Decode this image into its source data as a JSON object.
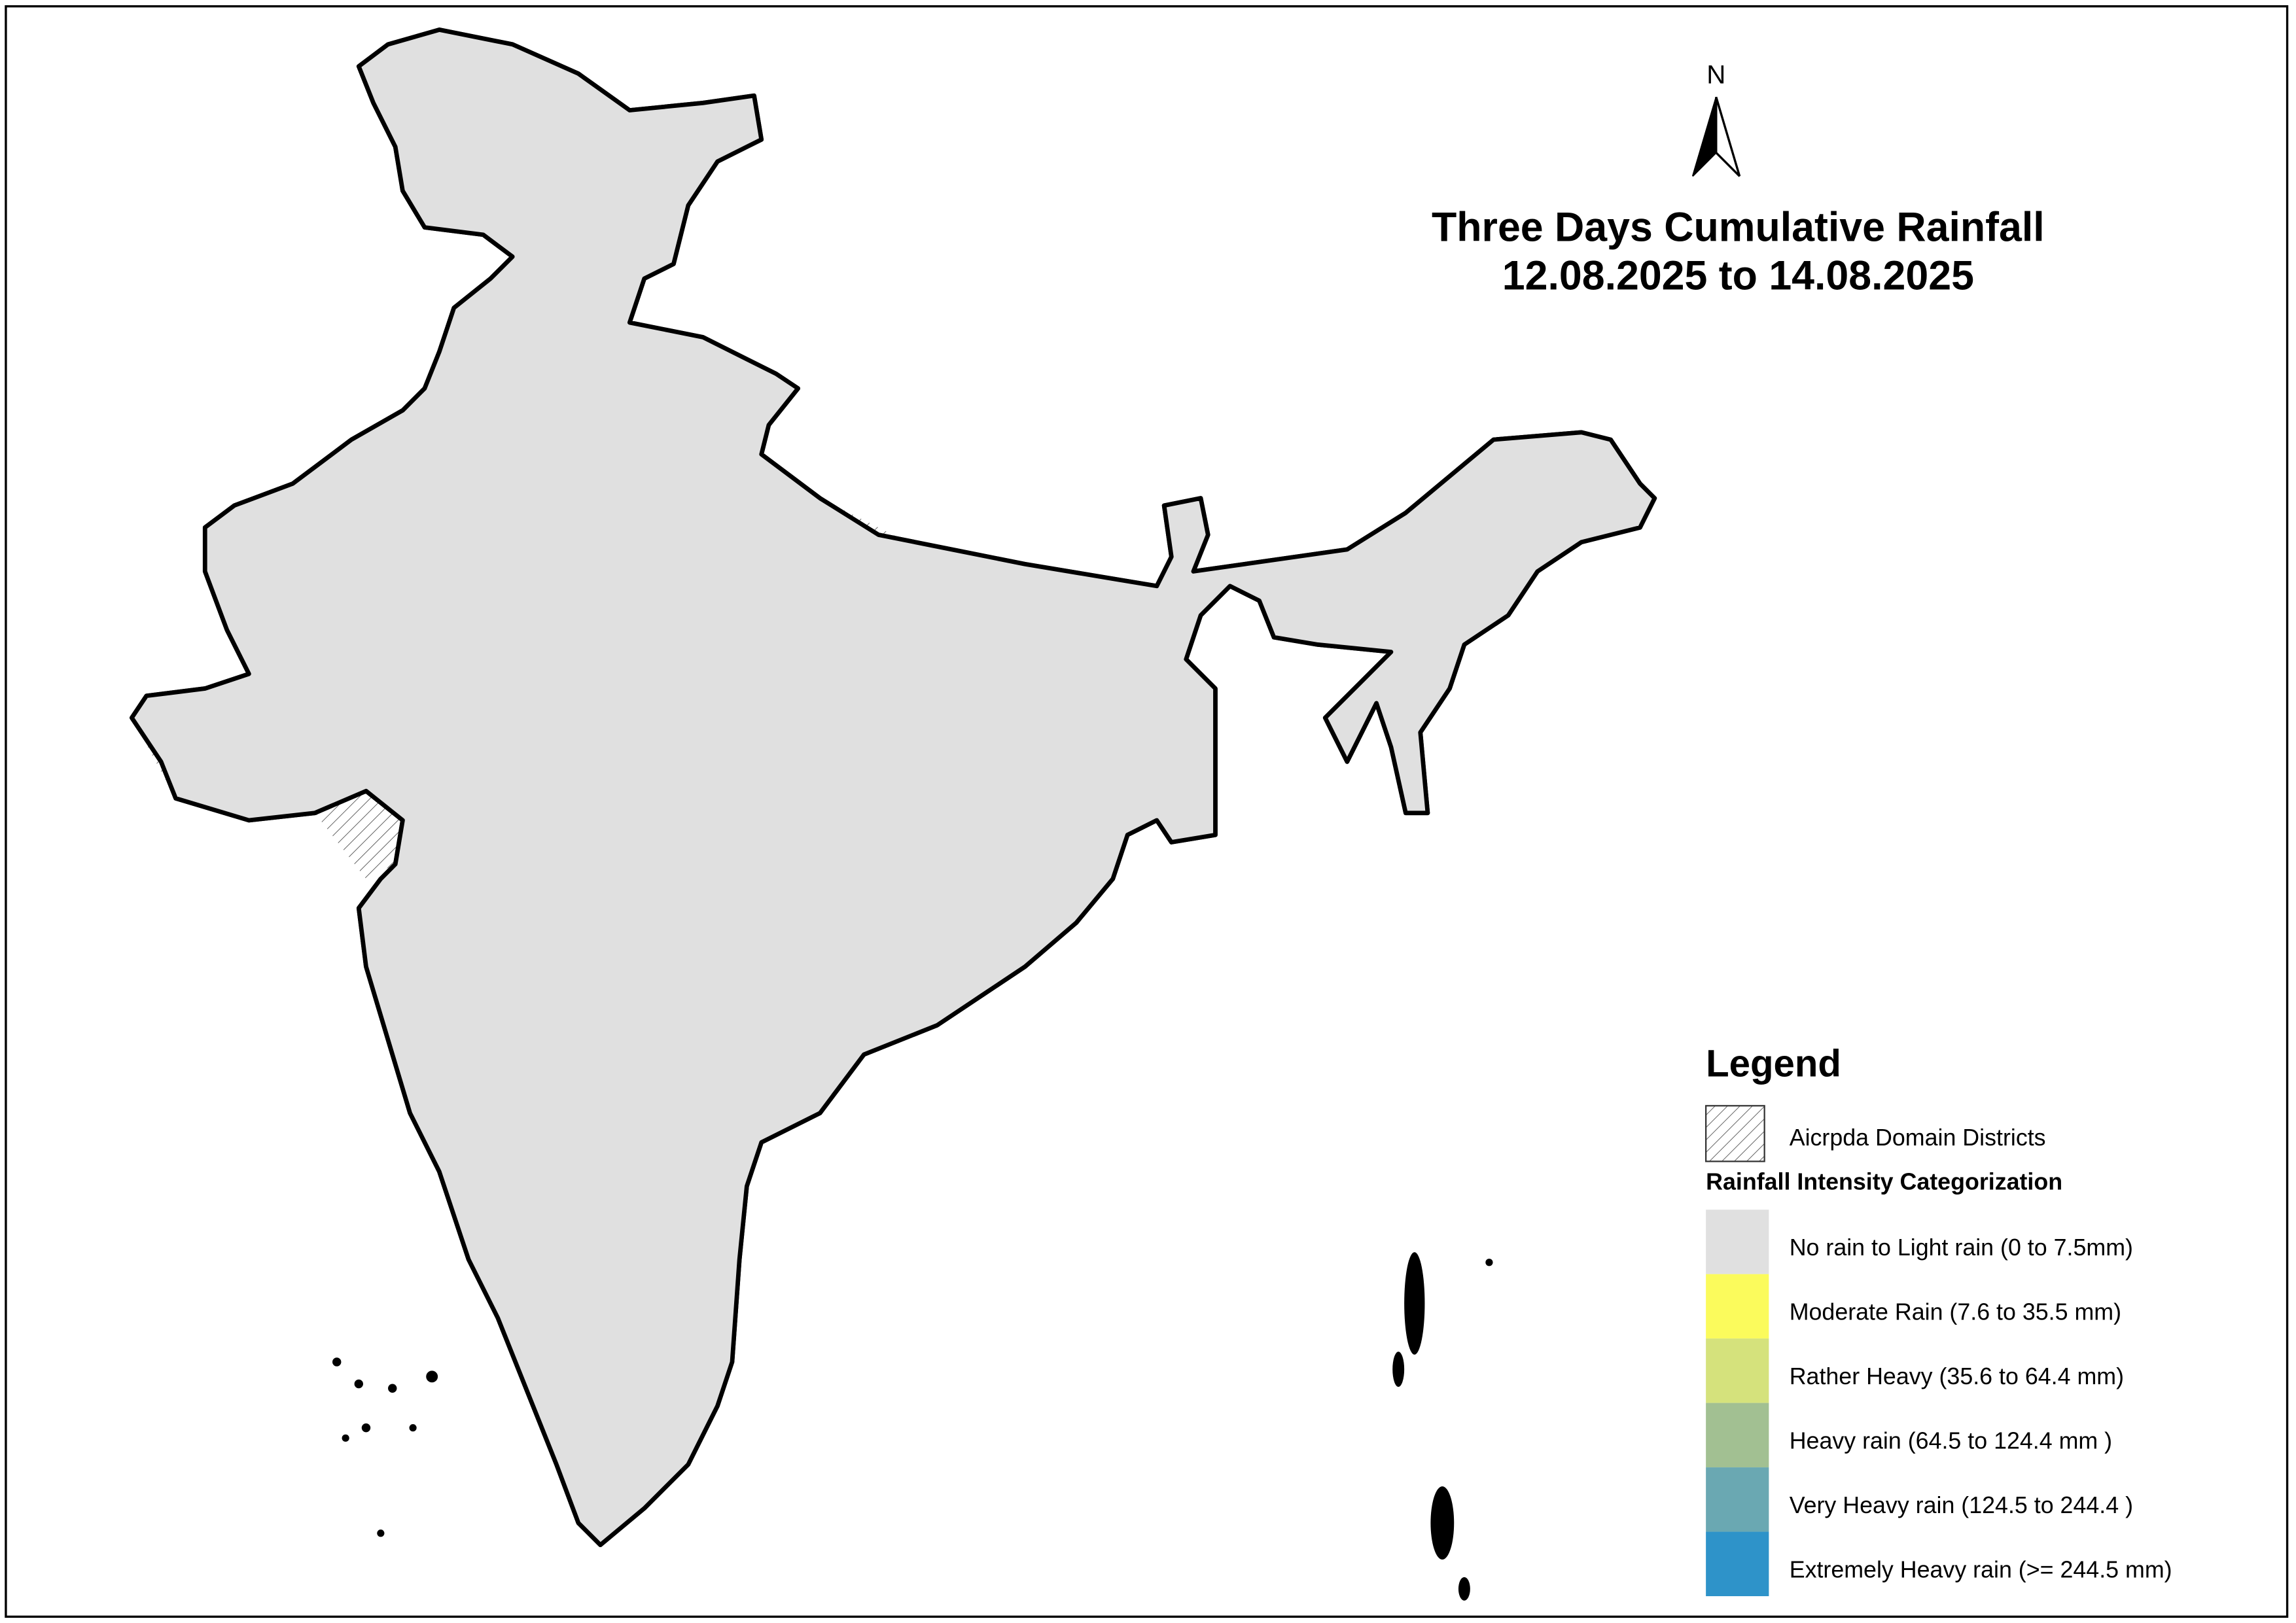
{
  "title": [
    "Three Days Cumulative Rainfall",
    "12.08.2025 to 14.08.2025"
  ],
  "north_label": "N",
  "legend": {
    "title": "Legend",
    "hatch_label": "Aicrpda Domain Districts",
    "subtitle": "Rainfall Intensity Categorization",
    "items": [
      {
        "label": "No rain to Light rain (0 to 7.5mm)",
        "color": "#e0e0e0"
      },
      {
        "label": "Moderate Rain (7.6 to 35.5 mm)",
        "color": "#fbfb5c"
      },
      {
        "label": "Rather Heavy (35.6 to 64.4 mm)",
        "color": "#d5e27c"
      },
      {
        "label": "Heavy rain (64.5 to 124.4 mm )",
        "color": "#a2c092"
      },
      {
        "label": "Very Heavy rain (124.5 to 244.4 )",
        "color": "#6aa8b2"
      },
      {
        "label": "Extremely Heavy rain  (>= 244.5 mm)",
        "color": "#2e93c9"
      }
    ]
  }
}
